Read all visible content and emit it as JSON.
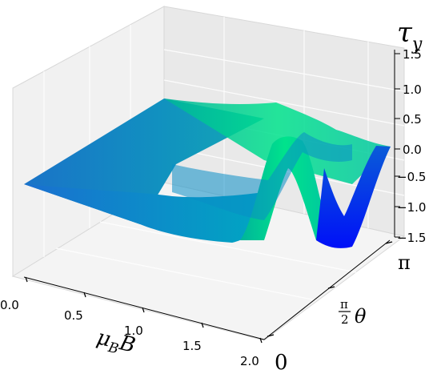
{
  "chart_data": {
    "type": "surface3d",
    "title": "",
    "xlabel": "μ_B B",
    "ylabel": "θ",
    "zlabel": "τ_y",
    "xlim": [
      0.0,
      2.0
    ],
    "ylim": [
      "0",
      "π"
    ],
    "zlim": [
      -1.5,
      1.5
    ],
    "x_ticks": [
      "0.0",
      "0.5",
      "1.0",
      "1.5",
      "2.0"
    ],
    "y_ticks": [
      "0",
      "π/2",
      "π"
    ],
    "z_ticks": [
      "−1.5",
      "−1.0",
      "−0.5",
      "0.0",
      "0.5",
      "1.0",
      "1.5"
    ],
    "surface": {
      "x": [
        0.0,
        0.2,
        0.4,
        0.6,
        0.8,
        1.0,
        1.2,
        1.4,
        1.6,
        1.8,
        2.0
      ],
      "description_series": [
        {
          "theta": 0.0,
          "z": [
            0.0,
            0.0,
            0.0,
            0.0,
            -0.6,
            -0.8,
            -0.6,
            -0.3,
            0.4,
            0.1,
            0.0
          ]
        },
        {
          "theta": 0.78,
          "z": [
            0.0,
            0.0,
            0.0,
            0.0,
            -0.3,
            -0.6,
            -0.4,
            0.9,
            0.2,
            -1.0,
            0.0
          ]
        },
        {
          "theta": 1.57,
          "z": [
            0.0,
            0.0,
            0.0,
            0.0,
            -0.1,
            -0.4,
            0.0,
            0.6,
            -0.6,
            -1.3,
            0.0
          ]
        },
        {
          "theta": 2.36,
          "z": [
            0.0,
            0.0,
            0.0,
            0.0,
            0.1,
            0.3,
            0.5,
            0.6,
            0.2,
            -0.3,
            0.0
          ]
        },
        {
          "theta": 3.14,
          "z": [
            0.0,
            0.0,
            0.0,
            0.0,
            0.0,
            0.0,
            0.0,
            0.0,
            0.0,
            0.0,
            0.0
          ]
        }
      ]
    },
    "colormap": [
      "#0000ff",
      "#00ff80"
    ],
    "grid": true
  }
}
